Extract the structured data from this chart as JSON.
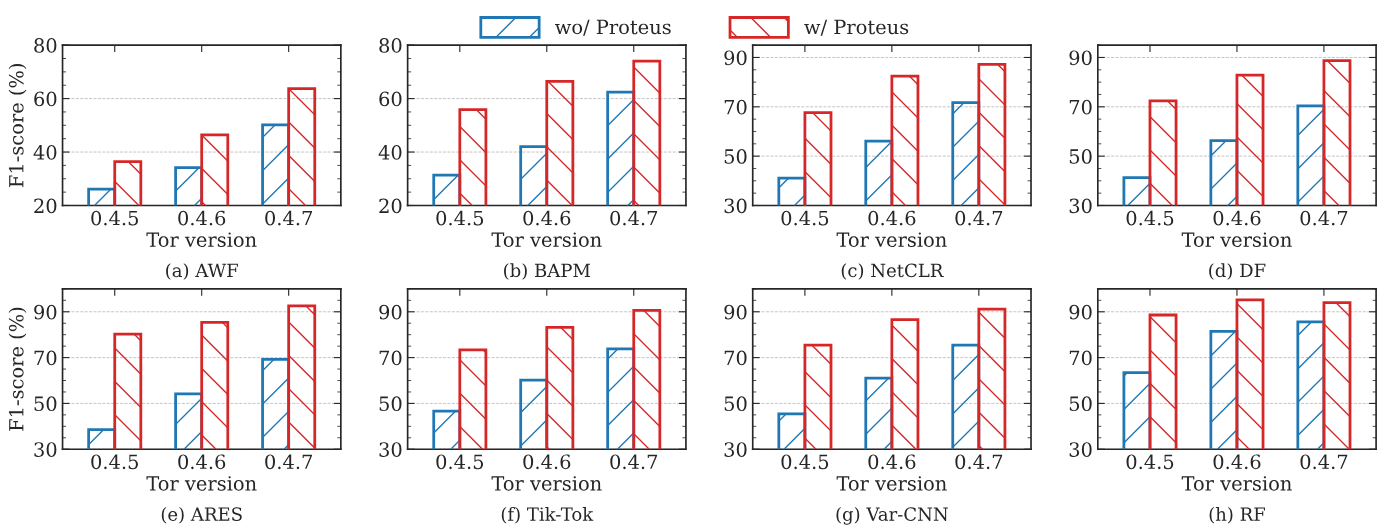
{
  "chart_data": [
    {
      "type": "bar",
      "title": "(a) AWF",
      "xlabel": "Tor version",
      "ylabel": "F1-score (%)",
      "categories": [
        "0.4.5",
        "0.4.6",
        "0.4.7"
      ],
      "ylim": [
        20,
        80
      ],
      "yticks": [
        20,
        40,
        60,
        80
      ],
      "grid": "y",
      "legend": "top",
      "series": [
        {
          "name": "wo/ Proteus",
          "color": "#1f77b4",
          "values": [
            26.1,
            34.2,
            50.2
          ]
        },
        {
          "name": "w/ Proteus",
          "color": "#d62728",
          "values": [
            36.4,
            46.4,
            63.7
          ]
        }
      ]
    },
    {
      "type": "bar",
      "title": "(b) BAPM",
      "xlabel": "Tor version",
      "categories": [
        "0.4.5",
        "0.4.6",
        "0.4.7"
      ],
      "ylim": [
        20,
        80
      ],
      "yticks": [
        20,
        40,
        60,
        80
      ],
      "grid": "y",
      "series": [
        {
          "color": "#1f77b4",
          "values": [
            31.4,
            42,
            62.4
          ]
        },
        {
          "color": "#d62728",
          "values": [
            55.9,
            66.4,
            74
          ]
        }
      ]
    },
    {
      "type": "bar",
      "title": "(c) NetCLR",
      "xlabel": "Tor version",
      "categories": [
        "0.4.5",
        "0.4.6",
        "0.4.7"
      ],
      "ylim": [
        30,
        95
      ],
      "yticks": [
        30,
        50,
        70,
        90
      ],
      "grid": "y",
      "series": [
        {
          "color": "#1f77b4",
          "values": [
            41.1,
            56.1,
            71.7
          ]
        },
        {
          "color": "#d62728",
          "values": [
            67.6,
            82.4,
            87.2
          ]
        }
      ]
    },
    {
      "type": "bar",
      "title": "(d) DF",
      "xlabel": "Tor version",
      "categories": [
        "0.4.5",
        "0.4.6",
        "0.4.7"
      ],
      "ylim": [
        30,
        95
      ],
      "yticks": [
        30,
        50,
        70,
        90
      ],
      "grid": "y",
      "series": [
        {
          "color": "#1f77b4",
          "values": [
            41.3,
            56.3,
            70.4
          ]
        },
        {
          "color": "#d62728",
          "values": [
            72.4,
            82.8,
            88.7
          ]
        }
      ]
    },
    {
      "type": "bar",
      "title": "(e) ARES",
      "xlabel": "Tor version",
      "ylabel": "F1-score (%)",
      "categories": [
        "0.4.5",
        "0.4.6",
        "0.4.7"
      ],
      "ylim": [
        30,
        100
      ],
      "yticks": [
        30,
        50,
        70,
        90
      ],
      "grid": "y",
      "series": [
        {
          "color": "#1f77b4",
          "values": [
            38.6,
            54.2,
            69.2
          ]
        },
        {
          "color": "#d62728",
          "values": [
            80.2,
            85.4,
            92.6
          ]
        }
      ]
    },
    {
      "type": "bar",
      "title": "(f) Tik-Tok",
      "xlabel": "Tor version",
      "categories": [
        "0.4.5",
        "0.4.6",
        "0.4.7"
      ],
      "ylim": [
        30,
        100
      ],
      "yticks": [
        30,
        50,
        70,
        90
      ],
      "grid": "y",
      "series": [
        {
          "color": "#1f77b4",
          "values": [
            46.6,
            60.2,
            73.8
          ]
        },
        {
          "color": "#d62728",
          "values": [
            73.4,
            83.2,
            90.6
          ]
        }
      ]
    },
    {
      "type": "bar",
      "title": "(g) Var-CNN",
      "xlabel": "Tor version",
      "categories": [
        "0.4.5",
        "0.4.6",
        "0.4.7"
      ],
      "ylim": [
        30,
        100
      ],
      "yticks": [
        30,
        50,
        70,
        90
      ],
      "grid": "y",
      "series": [
        {
          "color": "#1f77b4",
          "values": [
            45.4,
            61,
            75.4
          ]
        },
        {
          "color": "#d62728",
          "values": [
            75.4,
            86.6,
            91.2
          ]
        }
      ]
    },
    {
      "type": "bar",
      "title": "(h) RF",
      "xlabel": "Tor version",
      "categories": [
        "0.4.5",
        "0.4.6",
        "0.4.7"
      ],
      "ylim": [
        30,
        100
      ],
      "yticks": [
        30,
        50,
        70,
        90
      ],
      "grid": "y",
      "series": [
        {
          "color": "#1f77b4",
          "values": [
            63.4,
            81.4,
            85.6
          ]
        },
        {
          "color": "#d62728",
          "values": [
            88.6,
            95.2,
            94
          ]
        }
      ]
    }
  ]
}
